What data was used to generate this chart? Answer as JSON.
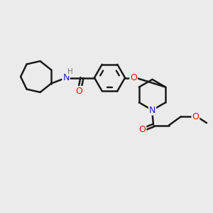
{
  "background_color": "#ebebeb",
  "line_color": "#1a1a1a",
  "bond_width": 1.8,
  "atom_colors": {
    "N": "#2222cc",
    "O": "#ee1100",
    "H": "#777777",
    "C": "#1a1a1a"
  },
  "figsize": [
    3.0,
    3.0
  ],
  "dpi": 100
}
